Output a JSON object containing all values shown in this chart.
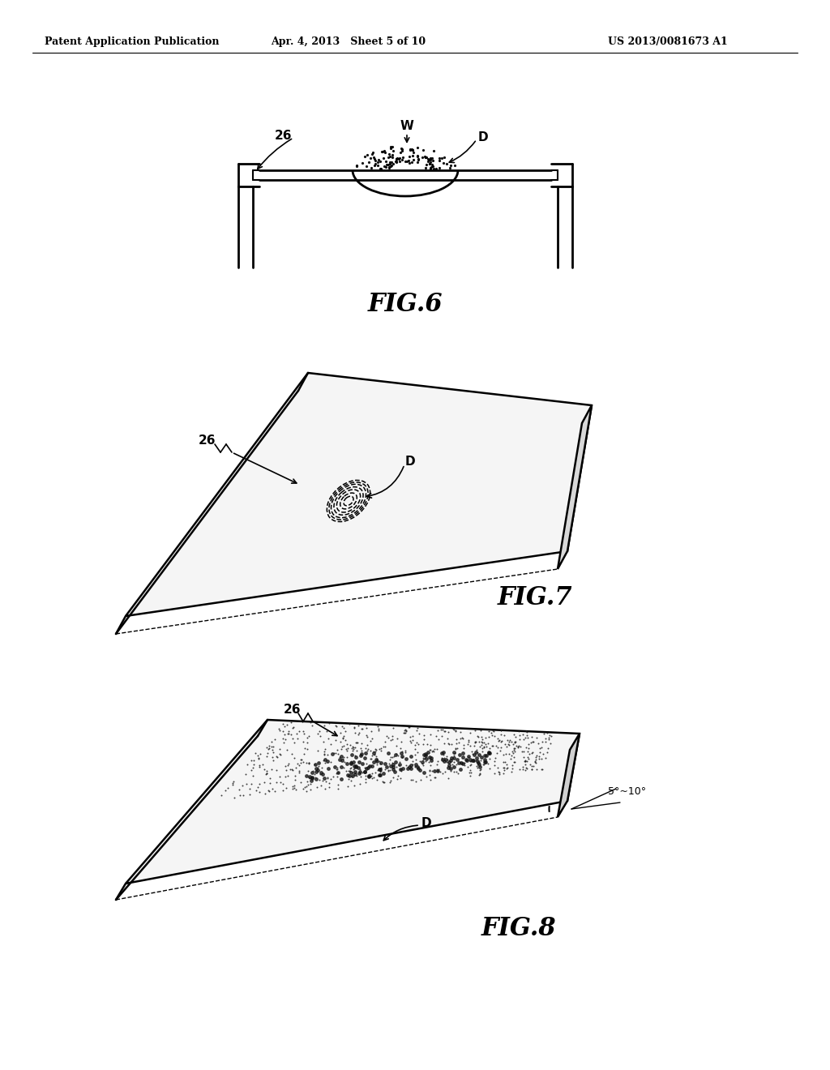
{
  "background_color": "#ffffff",
  "header_left": "Patent Application Publication",
  "header_center": "Apr. 4, 2013   Sheet 5 of 10",
  "header_right": "US 2013/0081673 A1",
  "fig6_label": "FIG.6",
  "fig7_label": "FIG.7",
  "fig8_label": "FIG.8",
  "label_26": "26",
  "label_W": "W",
  "label_D": "D",
  "label_angle": "5°~10°",
  "line_color": "#000000",
  "text_color": "#000000"
}
